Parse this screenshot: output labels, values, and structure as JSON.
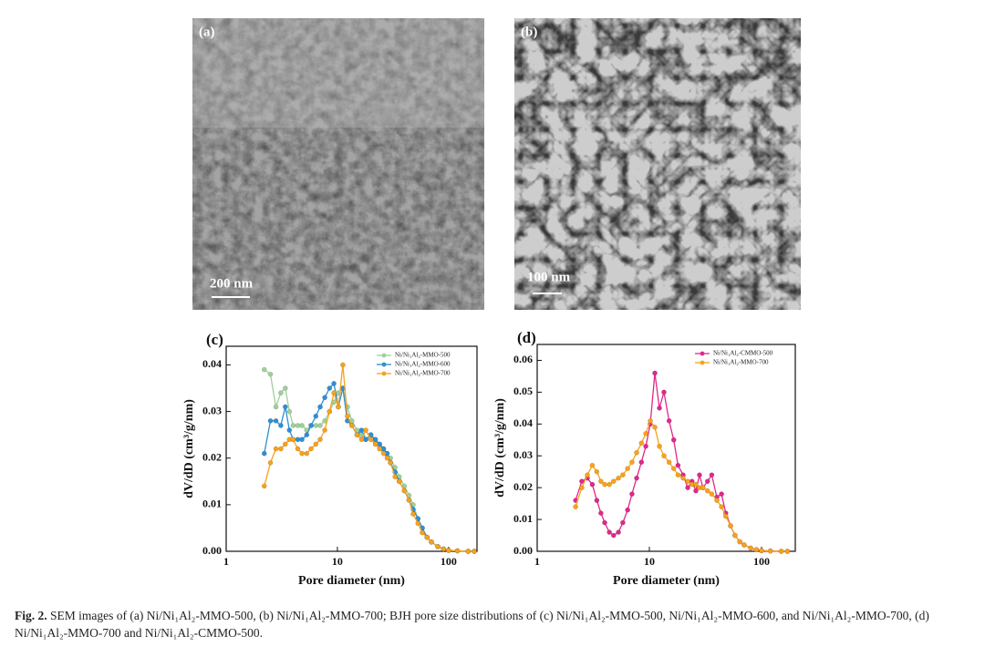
{
  "images": [
    {
      "label": "(a)",
      "scale_bar": "200 nm"
    },
    {
      "label": "(b)",
      "scale_bar": "100 nm"
    }
  ],
  "chart_data": [
    {
      "type": "line",
      "panel_label": "(c)",
      "x_label": "Pore diameter (nm)",
      "y_label": "dV/dD (cm³/g/nm)",
      "log_x": true,
      "legend": "upper right",
      "xlim": [
        1,
        180
      ],
      "xticks": [
        1,
        10,
        100
      ],
      "ylim": [
        0,
        0.044
      ],
      "yticks": [
        {
          "value": 0,
          "label": "0.00"
        },
        0.01,
        0.02,
        0.03,
        0.04
      ],
      "x": [
        2.2,
        2.5,
        2.8,
        3.1,
        3.4,
        3.7,
        4.0,
        4.4,
        4.8,
        5.3,
        5.8,
        6.4,
        7.0,
        7.7,
        8.5,
        9.3,
        10.2,
        11.2,
        12.3,
        13.5,
        15,
        16.5,
        18,
        20,
        22,
        24,
        26,
        28,
        30,
        33,
        36,
        40,
        44,
        48,
        53,
        58,
        64,
        70,
        80,
        90,
        100,
        120,
        150,
        170
      ],
      "series": [
        {
          "name": "Ni/Ni₁Al₂-MMO-500",
          "color": "#9fd09a",
          "values": [
            0.039,
            0.038,
            0.031,
            0.034,
            0.035,
            0.03,
            0.027,
            0.027,
            0.027,
            0.026,
            0.027,
            0.027,
            0.027,
            0.028,
            0.03,
            0.032,
            0.034,
            0.035,
            0.031,
            0.028,
            0.026,
            0.025,
            0.024,
            0.025,
            0.023,
            0.022,
            0.022,
            0.021,
            0.02,
            0.018,
            0.016,
            0.014,
            0.012,
            0.01,
            0.007,
            0.005,
            0.003,
            0.002,
            0.001,
            0.0005,
            0.0002,
            0.0001,
            0,
            0
          ]
        },
        {
          "name": "Ni/Ni₁Al₂-MMO-600",
          "color": "#2f8fd5",
          "values": [
            0.021,
            0.028,
            0.028,
            0.027,
            0.031,
            0.026,
            0.024,
            0.024,
            0.024,
            0.025,
            0.027,
            0.029,
            0.031,
            0.033,
            0.035,
            0.036,
            0.031,
            0.035,
            0.028,
            0.027,
            0.025,
            0.026,
            0.024,
            0.025,
            0.024,
            0.023,
            0.022,
            0.021,
            0.019,
            0.017,
            0.015,
            0.013,
            0.011,
            0.009,
            0.007,
            0.005,
            0.003,
            0.002,
            0.001,
            0.0005,
            0.0002,
            0.0001,
            0,
            0
          ]
        },
        {
          "name": "Ni/Ni₁Al₂-MMO-700",
          "color": "#f7a21b",
          "values": [
            0.014,
            0.019,
            0.022,
            0.022,
            0.023,
            0.024,
            0.024,
            0.022,
            0.021,
            0.021,
            0.022,
            0.023,
            0.024,
            0.026,
            0.03,
            0.034,
            0.031,
            0.04,
            0.029,
            0.027,
            0.025,
            0.024,
            0.026,
            0.024,
            0.023,
            0.022,
            0.021,
            0.02,
            0.019,
            0.016,
            0.015,
            0.013,
            0.011,
            0.008,
            0.006,
            0.004,
            0.003,
            0.002,
            0.001,
            0.0005,
            0.0002,
            0.0001,
            0,
            0
          ]
        }
      ]
    },
    {
      "type": "line",
      "panel_label": "(d)",
      "x_label": "Pore diameter (nm)",
      "y_label": "dV/dD (cm³/g/nm)",
      "log_x": true,
      "legend": "upper right",
      "xlim": [
        1,
        200
      ],
      "xticks": [
        1,
        10,
        100
      ],
      "ylim": [
        0,
        0.065
      ],
      "yticks": [
        {
          "value": 0,
          "label": "0.00"
        },
        0.01,
        0.02,
        0.03,
        0.04,
        0.05,
        0.06
      ],
      "x": [
        2.2,
        2.5,
        2.8,
        3.1,
        3.4,
        3.7,
        4.0,
        4.4,
        4.8,
        5.3,
        5.8,
        6.4,
        7.0,
        7.7,
        8.5,
        9.3,
        10.2,
        11.2,
        12.3,
        13.5,
        15,
        16.5,
        18,
        20,
        22,
        24,
        26,
        28,
        30,
        33,
        36,
        40,
        44,
        48,
        53,
        58,
        64,
        70,
        80,
        90,
        100,
        120,
        150,
        170
      ],
      "series": [
        {
          "name": "Ni/Ni₁Al₂-CMMO-500",
          "color": "#e0288a",
          "values": [
            0.016,
            0.022,
            0.023,
            0.021,
            0.016,
            0.012,
            0.009,
            0.006,
            0.005,
            0.006,
            0.009,
            0.013,
            0.018,
            0.023,
            0.028,
            0.033,
            0.04,
            0.056,
            0.045,
            0.05,
            0.041,
            0.035,
            0.027,
            0.024,
            0.02,
            0.022,
            0.019,
            0.024,
            0.02,
            0.022,
            0.024,
            0.017,
            0.018,
            0.012,
            0.008,
            0.005,
            0.003,
            0.002,
            0.001,
            0.0005,
            0.0002,
            0.0001,
            0,
            0
          ]
        },
        {
          "name": "Ni/Ni₁Al₂-MMO-700",
          "color": "#f7a21b",
          "values": [
            0.014,
            0.02,
            0.024,
            0.027,
            0.025,
            0.022,
            0.021,
            0.021,
            0.022,
            0.023,
            0.024,
            0.026,
            0.028,
            0.031,
            0.034,
            0.037,
            0.041,
            0.039,
            0.033,
            0.03,
            0.028,
            0.026,
            0.024,
            0.023,
            0.022,
            0.021,
            0.021,
            0.02,
            0.02,
            0.019,
            0.018,
            0.016,
            0.014,
            0.011,
            0.008,
            0.005,
            0.003,
            0.002,
            0.001,
            0.0005,
            0.0002,
            0.0001,
            0,
            0
          ]
        }
      ]
    }
  ],
  "caption": {
    "label": "Fig. 2.",
    "text": "SEM images of (a) Ni/Ni₁Al₂-MMO-500, (b) Ni/Ni₁Al₂-MMO-700; BJH pore size distributions of (c) Ni/Ni₁Al₂-MMO-500, Ni/Ni₁Al₂-MMO-600, and Ni/Ni₁Al₂-MMO-700, (d) Ni/Ni₁Al₂-MMO-700 and Ni/Ni₁Al₂-CMMO-500."
  }
}
